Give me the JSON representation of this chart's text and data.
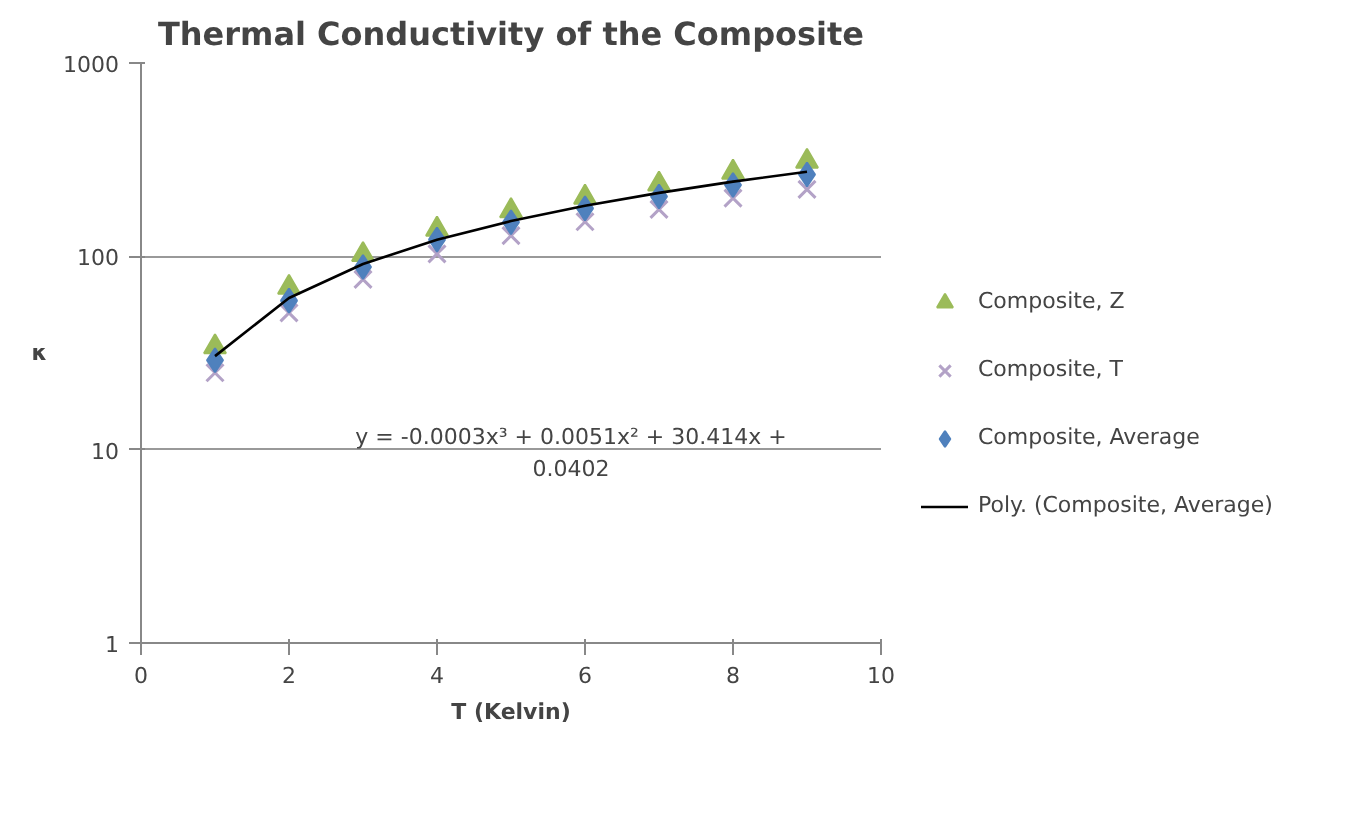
{
  "chart_data": {
    "type": "scatter",
    "title": "Thermal Conductivity of the Composite",
    "xlabel": "T (Kelvin)",
    "ylabel": "κ",
    "x": [
      1,
      2,
      3,
      4,
      5,
      6,
      7,
      8,
      9
    ],
    "series": [
      {
        "name": "Composite, Z",
        "color": "#9bbb59",
        "marker": "triangle",
        "values": [
          34,
          69,
          102,
          138,
          172,
          202,
          236,
          272,
          310
        ]
      },
      {
        "name": "Composite, T",
        "color": "#b3a2c7",
        "marker": "cross",
        "values": [
          25,
          51,
          76,
          103,
          128,
          151,
          175,
          200,
          222
        ]
      },
      {
        "name": "Composite, Average",
        "color": "#4f81bd",
        "marker": "diamond",
        "values": [
          29,
          59,
          88,
          122,
          150,
          177,
          204,
          234,
          265
        ]
      },
      {
        "name": "Poly. (Composite, Average)",
        "type": "line",
        "color": "#000000",
        "marker": "none",
        "x": [
          1,
          2,
          3,
          4,
          5,
          6,
          7,
          8,
          9
        ],
        "values": [
          30.46,
          60.88,
          91.33,
          121.8,
          152.2,
          182.6,
          213.0,
          243.4,
          273.7
        ]
      }
    ],
    "annotations": [
      "y = -0.0003x³ + 0.0051x² + 30.414x +\n0.0402"
    ],
    "xlim": [
      0,
      10
    ],
    "xticks": [
      0,
      2,
      4,
      6,
      8,
      10
    ],
    "ylim": [
      1,
      1000
    ],
    "yticks": [
      1,
      10,
      100,
      1000
    ],
    "log": "y",
    "grid": "y",
    "legend": "right"
  }
}
